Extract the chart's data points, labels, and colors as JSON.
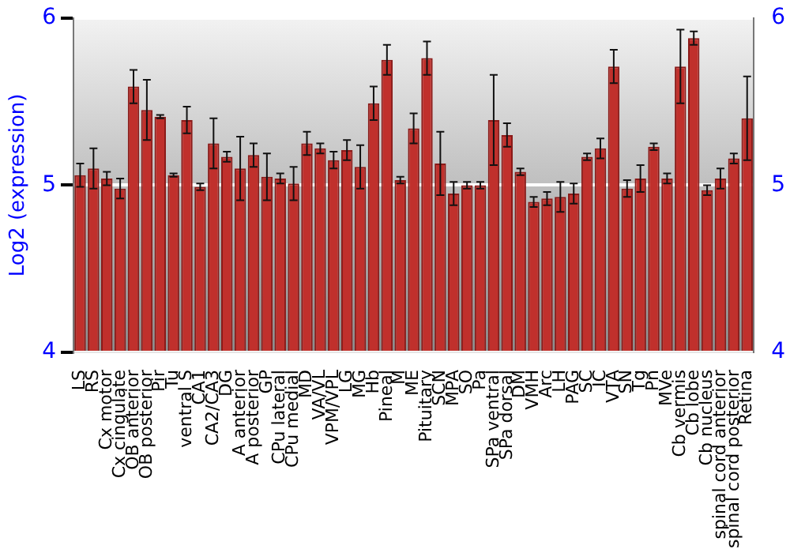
{
  "chart_data": {
    "type": "bar",
    "ylabel": "Log2 (expression)",
    "categories": [
      "LS",
      "RS",
      "Cx motor",
      "Cx cingulate",
      "OB anterior",
      "OB posterior",
      "Pir",
      "Tu",
      "ventral S",
      "CA1",
      "CA2/CA3",
      "DG",
      "A anterior",
      "A posterior",
      "GP",
      "CPu lateral",
      "CPu medial",
      "MD",
      "VA/VL",
      "VPM/VPL",
      "LG",
      "MG",
      "Hb",
      "Pineal",
      "M",
      "ME",
      "Pituitary",
      "SCN",
      "MPA",
      "SO",
      "Pa",
      "SPa ventral",
      "SPa dorsal",
      "DM",
      "VMH",
      "Arc",
      "LH",
      "PAG",
      "SC",
      "IC",
      "VTA",
      "SN",
      "Tg",
      "Pn",
      "MVe",
      "Cb vermis",
      "Cb lobe",
      "Cb nucleus",
      "spinal cord anterior",
      "spinal cord posterior",
      "Retina"
    ],
    "values": [
      5.06,
      5.1,
      5.04,
      4.98,
      5.59,
      5.45,
      5.41,
      5.06,
      5.39,
      4.99,
      5.25,
      5.17,
      5.1,
      5.18,
      5.05,
      5.04,
      5.01,
      5.25,
      5.22,
      5.15,
      5.21,
      5.11,
      5.49,
      5.75,
      5.03,
      5.34,
      5.76,
      5.13,
      4.95,
      5.0,
      5.0,
      5.39,
      5.3,
      5.08,
      4.9,
      4.92,
      4.93,
      4.95,
      5.17,
      5.22,
      5.71,
      4.98,
      5.04,
      5.23,
      5.04,
      5.71,
      5.88,
      4.97,
      5.04,
      5.16,
      5.4
    ],
    "errors": [
      0.07,
      0.12,
      0.04,
      0.06,
      0.1,
      0.18,
      0.01,
      0.01,
      0.08,
      0.02,
      0.15,
      0.03,
      0.19,
      0.07,
      0.14,
      0.03,
      0.1,
      0.07,
      0.03,
      0.05,
      0.06,
      0.13,
      0.1,
      0.09,
      0.02,
      0.09,
      0.1,
      0.19,
      0.07,
      0.02,
      0.02,
      0.27,
      0.07,
      0.02,
      0.03,
      0.04,
      0.09,
      0.06,
      0.02,
      0.06,
      0.1,
      0.05,
      0.08,
      0.02,
      0.03,
      0.22,
      0.04,
      0.03,
      0.06,
      0.03,
      0.25
    ],
    "color": "#c0302c",
    "ylim": [
      4,
      6
    ],
    "yticks": [
      4,
      5,
      6
    ],
    "y2lim": [
      4,
      6
    ],
    "y2ticks": [
      4,
      5,
      6
    ],
    "grid": "y",
    "legend": false
  }
}
